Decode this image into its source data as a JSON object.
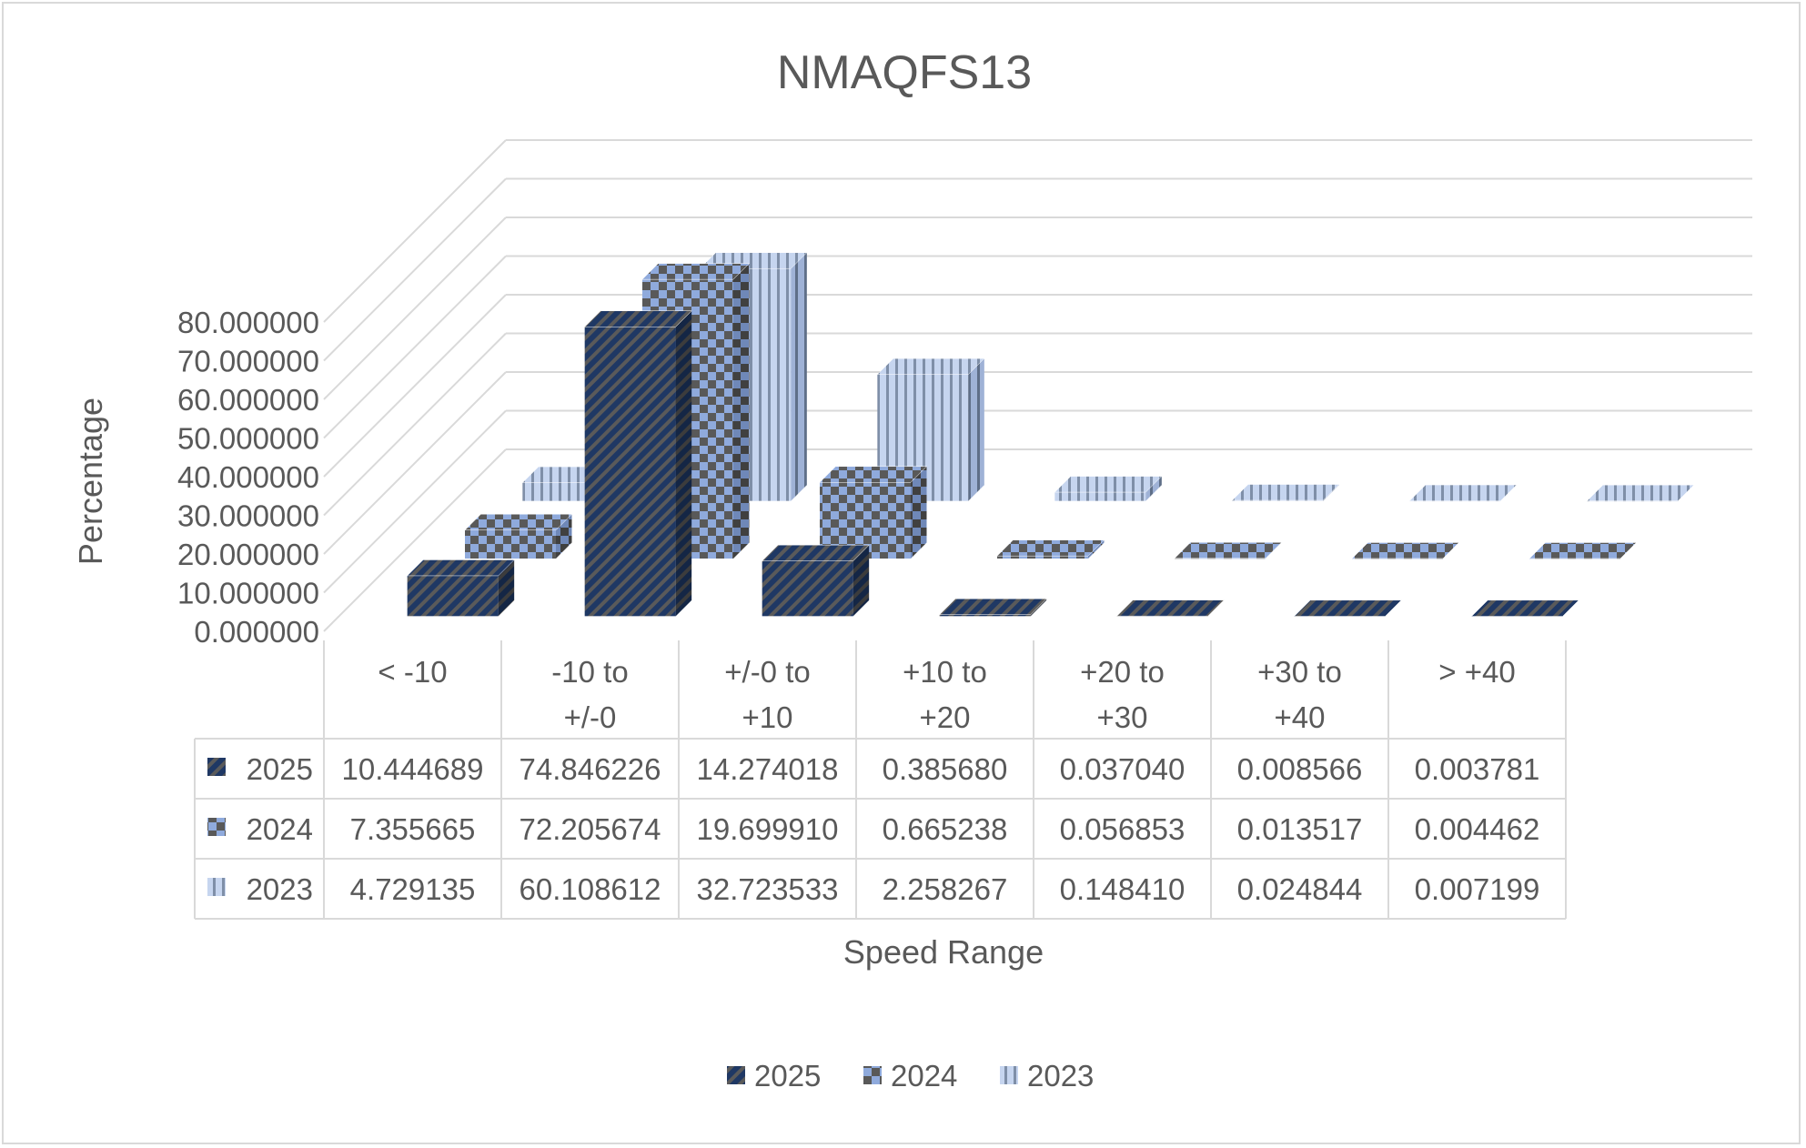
{
  "chart_data": {
    "type": "bar",
    "variant": "3d-clustered-column-with-data-table",
    "title": "NMAQFS13",
    "xlabel": "Speed Range",
    "ylabel": "Percentage",
    "ylim": [
      0,
      80
    ],
    "y_ticks": [
      "0.000000",
      "10.000000",
      "20.000000",
      "30.000000",
      "40.000000",
      "50.000000",
      "60.000000",
      "70.000000",
      "80.000000"
    ],
    "categories": [
      "< -10",
      "-10 to +/-0",
      "+/-0 to +10",
      "+10 to +20",
      "+20 to +30",
      "+30 to +40",
      "> +40"
    ],
    "category_lines": [
      [
        "< -10"
      ],
      [
        "-10 to",
        "+/-0"
      ],
      [
        "+/-0 to",
        "+10"
      ],
      [
        "+10 to",
        "+20"
      ],
      [
        "+20 to",
        "+30"
      ],
      [
        "+30 to",
        "+40"
      ],
      [
        "> +40"
      ]
    ],
    "series": [
      {
        "name": "2025",
        "values": [
          10.444689,
          74.846226,
          14.274018,
          0.38568,
          0.03704,
          0.008566,
          0.003781
        ],
        "labels": [
          "10.444689",
          "74.846226",
          "14.274018",
          "0.385680",
          "0.037040",
          "0.008566",
          "0.003781"
        ],
        "color": "#1f3864",
        "pattern": "diagonal"
      },
      {
        "name": "2024",
        "values": [
          7.355665,
          72.205674,
          19.69991,
          0.665238,
          0.056853,
          0.013517,
          0.004462
        ],
        "labels": [
          "7.355665",
          "72.205674",
          "19.699910",
          "0.665238",
          "0.056853",
          "0.013517",
          "0.004462"
        ],
        "color": "#8faadc",
        "pattern": "checker"
      },
      {
        "name": "2023",
        "values": [
          4.729135,
          60.108612,
          32.723533,
          2.258267,
          0.14841,
          0.024844,
          0.007199
        ],
        "labels": [
          "4.729135",
          "60.108612",
          "32.723533",
          "2.258267",
          "0.148410",
          "0.024844",
          "0.007199"
        ],
        "color": "#b4c7e7",
        "pattern": "vertical"
      }
    ],
    "grid": true,
    "legend": "bottom",
    "data_table": true
  }
}
